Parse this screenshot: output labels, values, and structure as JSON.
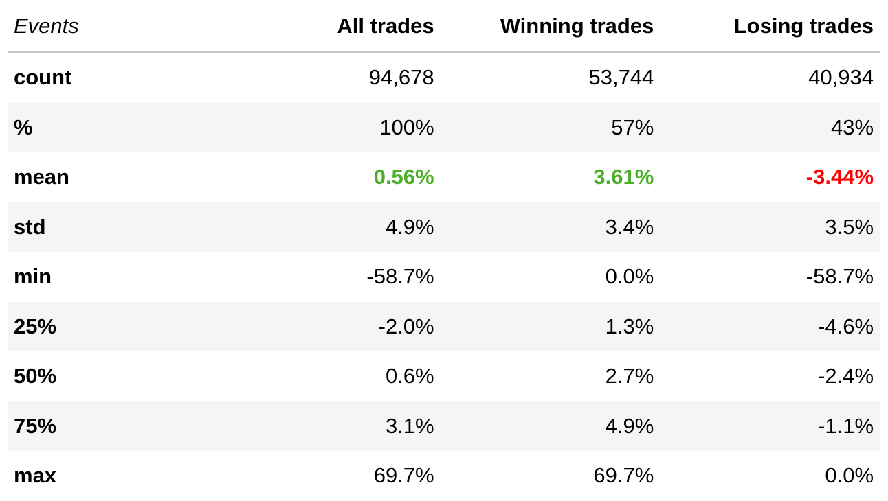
{
  "header": {
    "events": "Events",
    "all": "All trades",
    "win": "Winning trades",
    "lose": "Losing trades"
  },
  "rows": [
    {
      "label": "count",
      "all": "94,678",
      "win": "53,744",
      "lose": "40,934"
    },
    {
      "label": "%",
      "all": "100%",
      "win": "57%",
      "lose": "43%"
    },
    {
      "label": "mean",
      "all": "0.56%",
      "win": "3.61%",
      "lose": "-3.44%"
    },
    {
      "label": "std",
      "all": "4.9%",
      "win": "3.4%",
      "lose": "3.5%"
    },
    {
      "label": "min",
      "all": "-58.7%",
      "win": "0.0%",
      "lose": "-58.7%"
    },
    {
      "label": "25%",
      "all": "-2.0%",
      "win": "1.3%",
      "lose": "-4.6%"
    },
    {
      "label": "50%",
      "all": "0.6%",
      "win": "2.7%",
      "lose": "-2.4%"
    },
    {
      "label": "75%",
      "all": "3.1%",
      "win": "4.9%",
      "lose": "-1.1%"
    },
    {
      "label": "max",
      "all": "69.7%",
      "win": "69.7%",
      "lose": "0.0%"
    }
  ],
  "colors": {
    "positive": "#4caf2a",
    "negative": "#ff0000",
    "stripe": "#f5f5f5"
  }
}
